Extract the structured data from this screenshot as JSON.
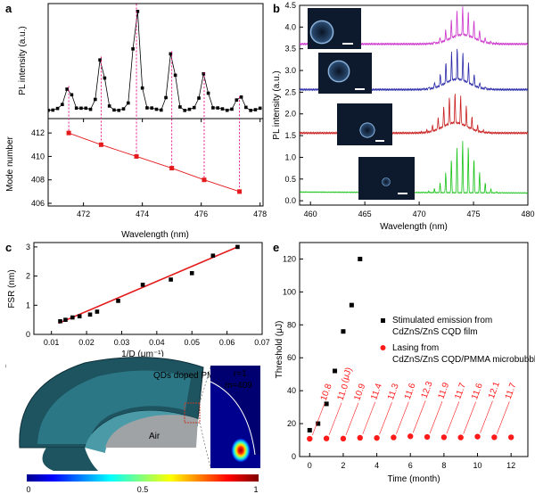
{
  "chart_data": [
    {
      "panel": "a",
      "type": "line",
      "subplots": [
        {
          "ylabel": "PL intensity (a.u.)",
          "peaks_x": [
            471.5,
            472.6,
            473.8,
            475.0,
            476.1,
            477.3
          ],
          "peaks_rel_height": [
            0.22,
            0.5,
            1.0,
            0.55,
            0.35,
            0.12
          ]
        },
        {
          "ylabel": "Mode number",
          "x": [
            471.5,
            472.6,
            473.8,
            475.0,
            476.1,
            477.3
          ],
          "y": [
            412,
            411,
            410,
            409,
            408,
            407
          ],
          "yticks": [
            "406",
            "408",
            "410",
            "412"
          ],
          "ylim": [
            406,
            413
          ]
        }
      ],
      "xlabel": "Wavelength (nm)",
      "xticks": [
        "472",
        "474",
        "476",
        "478"
      ],
      "xlim": [
        470.8,
        478.1
      ]
    },
    {
      "panel": "b",
      "type": "line",
      "xlabel": "Wavelength (nm)",
      "ylabel": "PL intensity (a.u.)",
      "xticks": [
        "460",
        "465",
        "470",
        "475",
        "480"
      ],
      "yticks": [
        "0.0",
        "0.5",
        "1.0",
        "1.5",
        "2.0",
        "2.5",
        "3.0",
        "3.5",
        "4.0",
        "4.5"
      ],
      "xlim": [
        459,
        480
      ],
      "ylim": [
        -0.1,
        4.5
      ],
      "series": [
        {
          "color": "#19c419",
          "baseline": 0.2,
          "amp": 1.2,
          "center": 474.0
        },
        {
          "color": "#c81e1e",
          "baseline": 1.5,
          "amp": 0.95,
          "center": 473.3
        },
        {
          "color": "#2828a8",
          "baseline": 2.5,
          "amp": 0.95,
          "center": 473.5
        },
        {
          "color": "#cc33cc",
          "baseline": 3.55,
          "amp": 0.85,
          "center": 474.0
        }
      ]
    },
    {
      "panel": "c",
      "type": "scatter",
      "xlabel": "1/D (μm⁻¹)",
      "ylabel": "FSR (nm)",
      "xticks": [
        "0.01",
        "0.02",
        "0.03",
        "0.04",
        "0.05",
        "0.06",
        "0.07"
      ],
      "yticks": [
        "0",
        "1",
        "2",
        "3"
      ],
      "xlim": [
        0.005,
        0.07
      ],
      "ylim": [
        0,
        3.15
      ],
      "x": [
        0.0125,
        0.014,
        0.016,
        0.018,
        0.021,
        0.023,
        0.029,
        0.036,
        0.044,
        0.05,
        0.056,
        0.063
      ],
      "y": [
        0.45,
        0.5,
        0.58,
        0.62,
        0.68,
        0.78,
        1.15,
        1.7,
        1.88,
        2.1,
        2.7,
        3.0
      ],
      "fit": {
        "x": [
          0.012,
          0.063
        ],
        "y": [
          0.38,
          3.0
        ],
        "color": "#e41a1c"
      }
    },
    {
      "panel": "e",
      "type": "scatter",
      "xlabel": "Time (month)",
      "ylabel": "Threshold (μJ)",
      "xticks": [
        "0",
        "2",
        "4",
        "6",
        "8",
        "10",
        "12"
      ],
      "yticks": [
        "0",
        "20",
        "40",
        "60",
        "80",
        "100",
        "120"
      ],
      "xlim": [
        -0.6,
        13
      ],
      "ylim": [
        0,
        130
      ],
      "series": [
        {
          "name": "Stimulated emission from CdZnS/ZnS CQD film",
          "color": "#000000",
          "x": [
            0,
            0.5,
            1,
            1.5,
            2,
            2.5,
            3
          ],
          "y": [
            16,
            20,
            32,
            52,
            76,
            92,
            120
          ]
        },
        {
          "name": "Lasing from CdZnS/ZnS CQD/PMMA microbubble",
          "color": "#ff1a1a",
          "x": [
            0,
            1,
            2,
            3,
            4,
            5,
            6,
            7,
            8,
            9,
            10,
            11,
            12
          ],
          "y": [
            10.8,
            11.0,
            10.9,
            11.4,
            11.3,
            11.6,
            12.3,
            11.9,
            11.7,
            11.6,
            12.1,
            11.7,
            11.7
          ]
        }
      ],
      "annotations": [
        "10.8",
        "11.0",
        "10.9",
        "11.4",
        "11.3",
        "11.6",
        "12.3",
        "11.9",
        "11.7",
        "11.6",
        "12.1",
        "11.7"
      ],
      "annotation_unit": "(μJ)"
    }
  ],
  "panel_d": {
    "label_qd": "QDs doped PMMA",
    "label_air": "Air",
    "mode_r": "r=1",
    "mode_m": "m=409",
    "colorbar_ticks": [
      "0",
      "0.5",
      "1"
    ]
  },
  "panel_labels": [
    "a",
    "b",
    "c",
    "d",
    "e"
  ]
}
